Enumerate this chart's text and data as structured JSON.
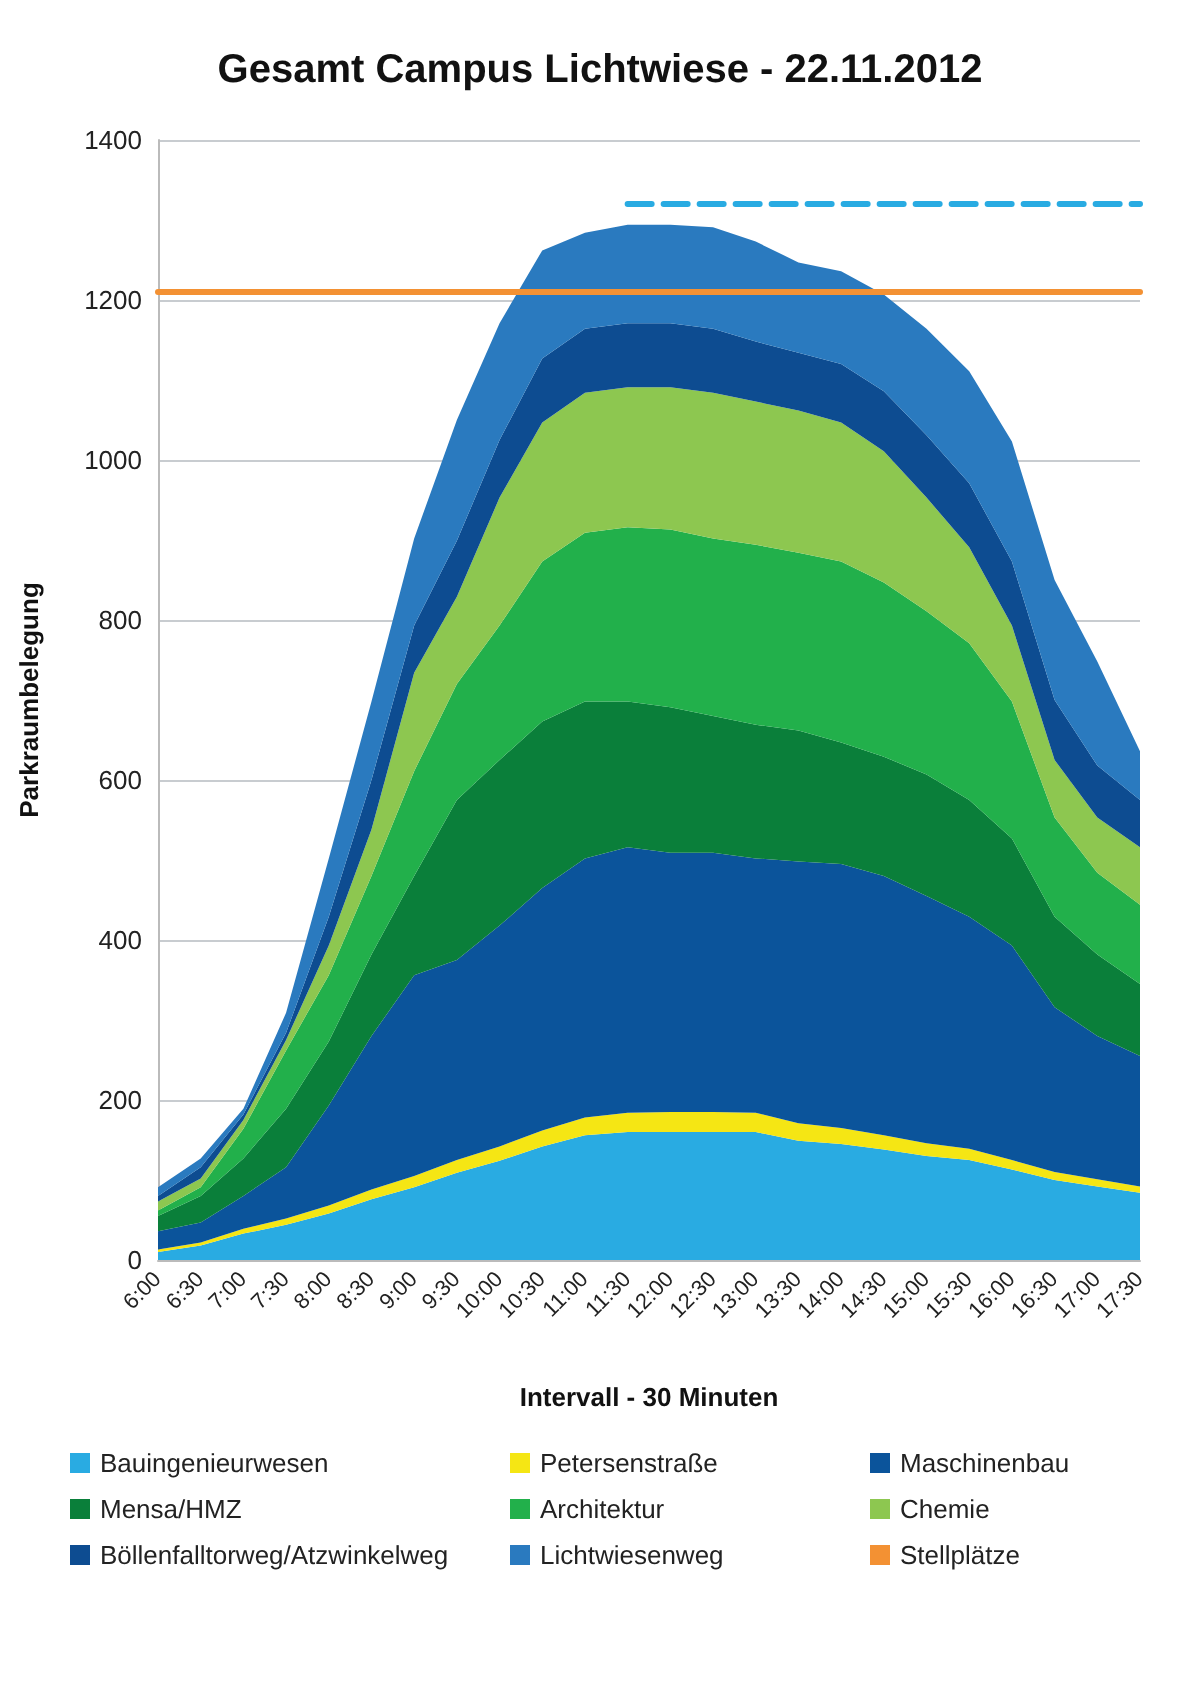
{
  "chart_data": {
    "type": "area",
    "title": "Gesamt Campus Lichtwiese - 22.11.2012",
    "xlabel": "Intervall - 30 Minuten",
    "ylabel": "Parkraumbelegung",
    "categories": [
      "6:00",
      "6:30",
      "7:00",
      "7:30",
      "8:00",
      "8:30",
      "9:00",
      "9:30",
      "10:00",
      "10:30",
      "11:00",
      "11:30",
      "12:00",
      "12:30",
      "13:00",
      "13:30",
      "14:00",
      "14:30",
      "15:00",
      "15:30",
      "16:00",
      "16:30",
      "17:00",
      "17:30"
    ],
    "ylim": [
      0,
      1400
    ],
    "yticks": [
      0,
      200,
      400,
      600,
      800,
      1000,
      1200,
      1400
    ],
    "grid": "y",
    "legend": "bottom",
    "stacked": true,
    "series": [
      {
        "name": "Bauingenieurwesen",
        "color": "#29abe2",
        "values": [
          10,
          18,
          33,
          44,
          58,
          76,
          91,
          109,
          124,
          142,
          156,
          160,
          160,
          160,
          160,
          149,
          145,
          138,
          130,
          125,
          113,
          100,
          92,
          84
        ]
      },
      {
        "name": "Petersenstraße",
        "color": "#f5e614",
        "values": [
          3,
          4,
          6,
          8,
          10,
          12,
          14,
          16,
          18,
          20,
          22,
          24,
          25,
          25,
          24,
          22,
          20,
          18,
          16,
          14,
          12,
          10,
          9,
          8
        ]
      },
      {
        "name": "Maschinenbau",
        "color": "#0b549b",
        "values": [
          23,
          25,
          41,
          64,
          125,
          192,
          251,
          250,
          276,
          303,
          324,
          332,
          324,
          324,
          318,
          327,
          330,
          324,
          309,
          290,
          268,
          206,
          179,
          163
        ]
      },
      {
        "name": "Mensa/HMZ",
        "color": "#0a7f3a",
        "values": [
          19,
          33,
          47,
          73,
          80,
          102,
          124,
          200,
          207,
          208,
          196,
          182,
          182,
          171,
          167,
          164,
          152,
          149,
          152,
          146,
          134,
          113,
          102,
          90
        ]
      },
      {
        "name": "Architektur",
        "color": "#22b04b",
        "values": [
          7,
          11,
          37,
          73,
          83,
          98,
          131,
          145,
          168,
          200,
          211,
          218,
          222,
          222,
          225,
          222,
          226,
          218,
          204,
          196,
          171,
          124,
          102,
          99
        ]
      },
      {
        "name": "Chemie",
        "color": "#8dc750",
        "values": [
          11,
          11,
          11,
          13,
          37,
          58,
          123,
          109,
          160,
          174,
          175,
          175,
          178,
          182,
          179,
          178,
          174,
          164,
          142,
          120,
          95,
          72,
          69,
          72
        ]
      },
      {
        "name": "Böllenfalltorweg/Atzwinkelweg",
        "color": "#0d4c91",
        "values": [
          7,
          14,
          7,
          9,
          36,
          62,
          59,
          70,
          72,
          80,
          80,
          80,
          80,
          80,
          75,
          72,
          73,
          75,
          78,
          80,
          80,
          75,
          65,
          59
        ]
      },
      {
        "name": "Lichtwiesenweg",
        "color": "#2a7abf",
        "values": [
          11,
          11,
          7,
          25,
          73,
          98,
          109,
          151,
          146,
          135,
          120,
          123,
          123,
          127,
          125,
          113,
          116,
          121,
          133,
          140,
          150,
          150,
          130,
          61
        ]
      },
      {
        "name": "Stellplätze",
        "type": "line",
        "color": "#f39133",
        "line_style": "solid",
        "values": [
          1210,
          1210,
          1210,
          1210,
          1210,
          1210,
          1210,
          1210,
          1210,
          1210,
          1210,
          1210,
          1210,
          1210,
          1210,
          1210,
          1210,
          1210,
          1210,
          1210,
          1210,
          1210,
          1210,
          1210
        ]
      },
      {
        "type": "line",
        "color": "#29abe2",
        "line_style": "dashed",
        "values": [
          null,
          null,
          null,
          null,
          null,
          null,
          null,
          null,
          null,
          null,
          null,
          1320,
          1320,
          1320,
          1320,
          1320,
          1320,
          1320,
          1320,
          1320,
          1320,
          1320,
          1320,
          1320
        ]
      }
    ]
  }
}
